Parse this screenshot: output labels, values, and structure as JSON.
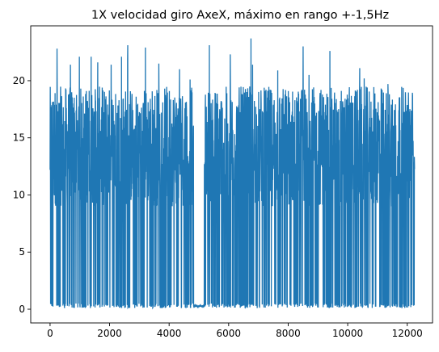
{
  "chart_data": {
    "type": "line",
    "title": "1X velocidad giro AxeX, máximo en rango +-1,5Hz",
    "xlabel": "",
    "ylabel": "",
    "xlim": [
      -650,
      12850
    ],
    "ylim": [
      -1.2,
      24.8
    ],
    "xticks": [
      0,
      2000,
      4000,
      6000,
      8000,
      10000,
      12000
    ],
    "xtick_labels": [
      "0",
      "2000",
      "4000",
      "6000",
      "8000",
      "10000",
      "12000"
    ],
    "yticks": [
      0,
      5,
      10,
      15,
      20
    ],
    "ytick_labels": [
      "0",
      "5",
      "10",
      "15",
      "20"
    ],
    "grid": false,
    "n_points": 12250,
    "series": [
      {
        "color": "#1f77b4",
        "peaks": [
          [
            230,
            22.8
          ],
          [
            680,
            21.4
          ],
          [
            980,
            22.1
          ],
          [
            1380,
            22.1
          ],
          [
            1600,
            21.6
          ],
          [
            2050,
            21.4
          ],
          [
            2400,
            22.1
          ],
          [
            2600,
            21.8
          ],
          [
            2600,
            23.1
          ],
          [
            3200,
            22.9
          ],
          [
            3650,
            21.5
          ],
          [
            4350,
            21.0
          ],
          [
            4700,
            20.1
          ],
          [
            5350,
            23.1
          ],
          [
            6050,
            22.3
          ],
          [
            6750,
            23.7
          ],
          [
            6800,
            21.4
          ],
          [
            7650,
            20.9
          ],
          [
            8500,
            23.0
          ],
          [
            8700,
            20.5
          ],
          [
            9400,
            22.6
          ],
          [
            10400,
            21.1
          ],
          [
            10550,
            20.2
          ],
          [
            11350,
            19.7
          ]
        ],
        "gap_range": [
          4820,
          5180
        ],
        "gap_level": 0.2
      }
    ]
  }
}
